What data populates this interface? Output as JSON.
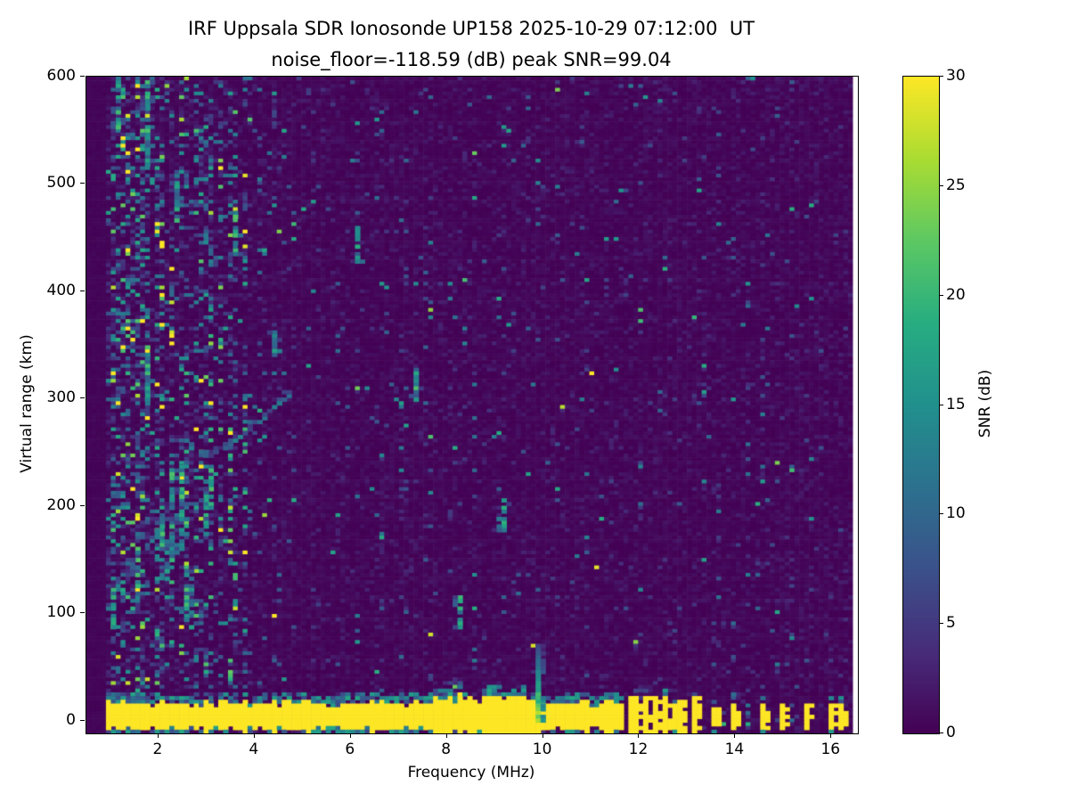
{
  "chart_data": {
    "type": "heatmap",
    "title": "IRF Uppsala SDR Ionosonde UP158 2025-10-29 07:12:00  UT",
    "subtitle": "noise_floor=-118.59 (dB) peak SNR=99.04",
    "xlabel": "Frequency (MHz)",
    "ylabel": "Virtual range (km)",
    "xlim": [
      0.5,
      16.55
    ],
    "ylim": [
      -12,
      600
    ],
    "xticks": [
      2,
      4,
      6,
      8,
      10,
      12,
      14,
      16
    ],
    "yticks": [
      0,
      100,
      200,
      300,
      400,
      500,
      600
    ],
    "grid": false,
    "colormap": "viridis",
    "colorbar": {
      "label": "SNR (dB)",
      "min": 0,
      "max": 30,
      "ticks": [
        0,
        5,
        10,
        15,
        20,
        25,
        30
      ],
      "position": "right"
    },
    "noise_floor_db": -118.59,
    "peak_snr_db": 99.04,
    "seed": 20251029,
    "data_freq_start": 0.93,
    "data_freq_end": 16.42,
    "background_mean_snr_db": 0.8,
    "ground_pulse": {
      "freq_start_mhz": 0.95,
      "freq_end_mhz": 11.72,
      "range_center_km": 4,
      "half_width_km": 12,
      "snr_db": 30
    },
    "pulse_spike": {
      "freq_mhz": 9.85,
      "top_km": 70
    },
    "discrete_pulse_freqs_mhz": [
      11.79,
      11.96,
      12.12,
      12.3,
      12.49,
      12.71,
      12.88,
      13.1,
      13.51,
      14.01,
      14.56,
      15.0,
      15.49,
      16.0,
      16.19
    ],
    "interference_stripe_freqs_mhz": [
      1.05,
      1.2,
      1.35,
      1.5,
      1.65,
      1.8,
      1.95,
      2.1,
      2.28,
      2.45,
      2.6,
      2.78,
      2.95,
      3.1,
      3.3,
      3.55,
      3.8,
      4.1,
      4.45,
      4.8,
      5.2,
      5.7,
      6.15,
      6.6,
      7.1,
      7.6,
      8.1,
      8.6,
      9.15,
      9.7,
      10.3,
      10.9
    ],
    "echo_trace_points": [
      [
        2.62,
        260
      ],
      [
        2.78,
        252
      ],
      [
        2.95,
        248
      ],
      [
        3.12,
        248
      ],
      [
        3.3,
        251
      ],
      [
        3.5,
        257
      ],
      [
        3.72,
        265
      ],
      [
        3.95,
        274
      ],
      [
        4.18,
        283
      ],
      [
        4.4,
        292
      ],
      [
        4.6,
        299
      ],
      [
        4.78,
        305
      ]
    ],
    "bright_patches": [
      [
        1.05,
        88,
        122
      ],
      [
        1.15,
        552,
        600
      ],
      [
        1.6,
        118,
        168
      ],
      [
        1.72,
        518,
        600
      ],
      [
        1.74,
        296,
        348
      ],
      [
        2.05,
        155,
        192
      ],
      [
        2.2,
        126,
        158
      ],
      [
        2.28,
        148,
        232
      ],
      [
        2.38,
        466,
        508
      ],
      [
        2.45,
        158,
        206
      ],
      [
        2.52,
        204,
        240
      ],
      [
        2.6,
        94,
        146
      ],
      [
        2.72,
        88,
        126
      ],
      [
        2.95,
        174,
        222
      ],
      [
        3.08,
        198,
        238
      ],
      [
        3.55,
        436,
        478
      ],
      [
        4.45,
        338,
        362
      ],
      [
        6.15,
        428,
        458
      ],
      [
        7.35,
        298,
        326
      ],
      [
        8.3,
        88,
        115
      ],
      [
        9.15,
        178,
        206
      ]
    ]
  }
}
